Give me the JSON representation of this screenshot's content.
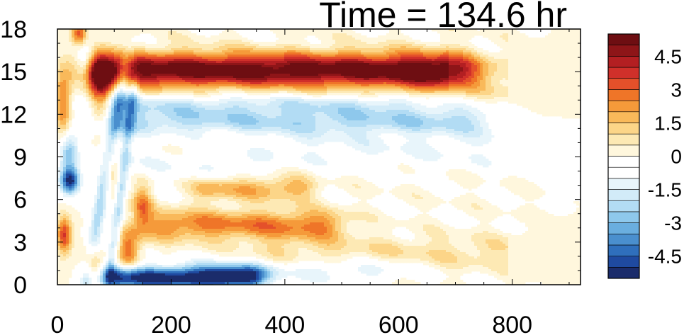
{
  "chart_data": {
    "type": "heatmap",
    "title": "Time = 134.6 hr",
    "xlabel": "",
    "ylabel": "",
    "xlim": [
      0,
      920
    ],
    "ylim": [
      0,
      18
    ],
    "xticks": [
      0,
      200,
      400,
      600,
      800
    ],
    "yticks": [
      0,
      3,
      6,
      9,
      12,
      15,
      18
    ],
    "colorbar": {
      "levels": [
        -5.5,
        -5,
        -4.5,
        -4,
        -3.5,
        -3,
        -2.5,
        -2,
        -1.5,
        -1,
        -0.5,
        0,
        0.5,
        1,
        1.5,
        2,
        2.5,
        3,
        3.5,
        4,
        4.5,
        5,
        5.5
      ],
      "tick_labels": [
        "4.5",
        "3",
        "1.5",
        "0",
        "-1.5",
        "-3",
        "-4.5"
      ],
      "tick_values": [
        4.5,
        3,
        1.5,
        0,
        -1.5,
        -3,
        -4.5
      ],
      "colors": [
        "#1b2c6b",
        "#1f4aa0",
        "#2f6fbc",
        "#4a8fce",
        "#6aaedf",
        "#8ec8ec",
        "#b2dcf4",
        "#d2ebf8",
        "#e8f5fb",
        "#ffffff",
        "#ffffff",
        "#fff7dd",
        "#fde9b4",
        "#fcd588",
        "#f9b95a",
        "#f59a3a",
        "#ef7528",
        "#e4502a",
        "#d0302a",
        "#b31f22",
        "#8e1518",
        "#6e0e12"
      ]
    },
    "features": [
      {
        "label": "upper warm band",
        "x": [
          80,
          760
        ],
        "y": 15.2,
        "amplitude": 5.2
      },
      {
        "label": "cool band below",
        "x": [
          150,
          620
        ],
        "y": 11.6,
        "amplitude": -3.2
      },
      {
        "label": "lower cool band",
        "x": [
          100,
          360
        ],
        "y": 0.6,
        "amplitude": -5.0
      },
      {
        "label": "warm band near 3",
        "x": [
          160,
          500
        ],
        "y": 4.0,
        "amplitude": 2.4
      },
      {
        "label": "warm patch near 7",
        "x": [
          280,
          420
        ],
        "y": 6.8,
        "amplitude": 1.8
      },
      {
        "label": "cool patch near 7",
        "x": [
          0,
          40
        ],
        "y": 7.3,
        "amplitude": -5.0
      }
    ]
  }
}
